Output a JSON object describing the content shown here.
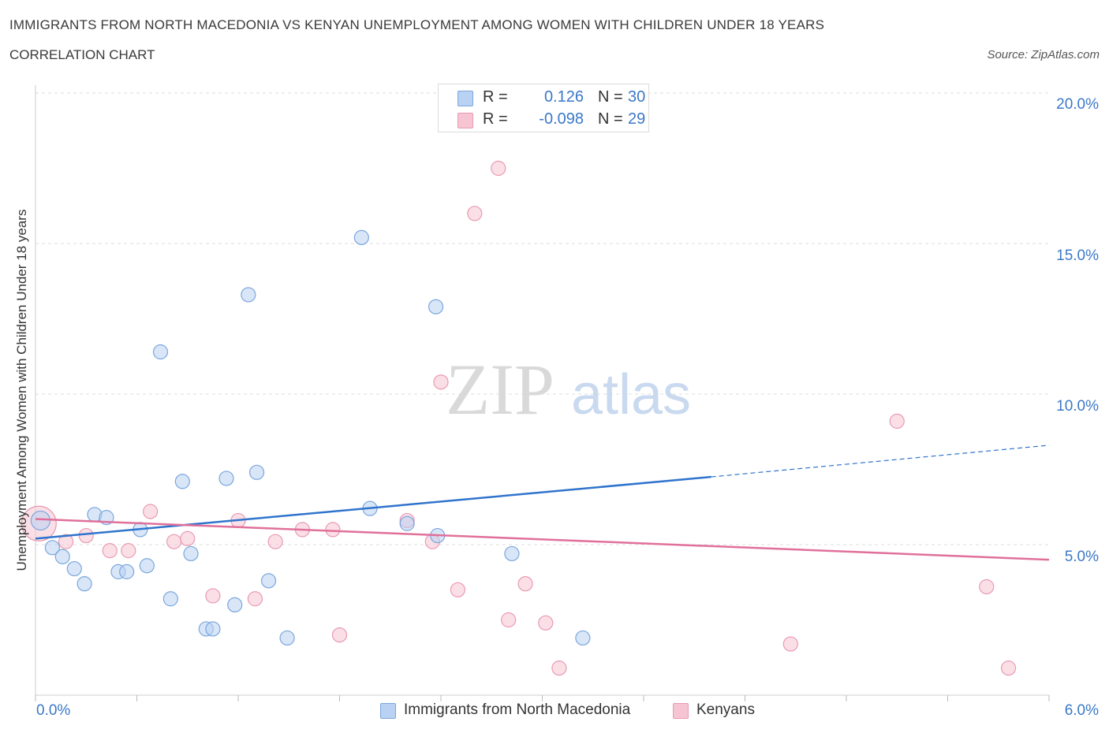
{
  "header": {
    "title": "IMMIGRANTS FROM NORTH MACEDONIA VS KENYAN UNEMPLOYMENT AMONG WOMEN WITH CHILDREN UNDER 18 YEARS",
    "subtitle": "CORRELATION CHART",
    "source": "Source: ZipAtlas.com"
  },
  "watermark": {
    "zip": "ZIP",
    "atlas": "atlas"
  },
  "colors": {
    "blue_fill": "#b9d2f3",
    "blue_stroke": "#7aa7dd",
    "blue_line": "#2f74cc",
    "pink_fill": "#f7c4d3",
    "pink_stroke": "#e99ab3",
    "pink_line": "#e0709a",
    "axis_text": "#3b78c8",
    "grid": "#dddddd"
  },
  "stats_legend": [
    {
      "swatch": "blue",
      "r_label": "R =",
      "r_value": "0.126",
      "n_label": "N =",
      "n_value": "30"
    },
    {
      "swatch": "pink",
      "r_label": "R =",
      "r_value": "-0.098",
      "n_label": "N =",
      "n_value": "29"
    }
  ],
  "chart_data": {
    "type": "scatter",
    "title": "IMMIGRANTS FROM NORTH MACEDONIA VS KENYAN UNEMPLOYMENT AMONG WOMEN WITH CHILDREN UNDER 18 YEARS",
    "xlabel": "",
    "ylabel": "Unemployment Among Women with Children Under 18 years",
    "xlim": [
      0,
      6
    ],
    "ylim": [
      0,
      20
    ],
    "x_tick_labels": [
      "0.0%",
      "6.0%"
    ],
    "y_ticks": [
      5,
      10,
      15,
      20
    ],
    "y_tick_labels": [
      "5.0%",
      "10.0%",
      "15.0%",
      "20.0%"
    ],
    "grid": "horizontal dashed",
    "legend": "bottom-center",
    "series": [
      {
        "name": "Immigrants from North Macedonia",
        "color": "blue",
        "points": [
          [
            0.03,
            5.8
          ],
          [
            0.1,
            4.9
          ],
          [
            0.16,
            4.6
          ],
          [
            0.23,
            4.2
          ],
          [
            0.29,
            3.7
          ],
          [
            0.35,
            6.0
          ],
          [
            0.42,
            5.9
          ],
          [
            0.49,
            4.1
          ],
          [
            0.54,
            4.1
          ],
          [
            0.62,
            5.5
          ],
          [
            0.66,
            4.3
          ],
          [
            0.74,
            11.4
          ],
          [
            0.8,
            3.2
          ],
          [
            0.87,
            7.1
          ],
          [
            0.92,
            4.7
          ],
          [
            1.01,
            2.2
          ],
          [
            1.05,
            2.2
          ],
          [
            1.13,
            7.2
          ],
          [
            1.18,
            3.0
          ],
          [
            1.26,
            13.3
          ],
          [
            1.31,
            7.4
          ],
          [
            1.38,
            3.8
          ],
          [
            1.49,
            1.9
          ],
          [
            1.93,
            15.2
          ],
          [
            1.98,
            6.2
          ],
          [
            2.2,
            5.7
          ],
          [
            2.37,
            12.9
          ],
          [
            2.38,
            5.3
          ],
          [
            2.82,
            4.7
          ],
          [
            3.24,
            1.9
          ]
        ],
        "trend": {
          "x": [
            0,
            4
          ],
          "y": [
            5.2,
            7.25
          ]
        },
        "trend_dashed": {
          "x": [
            4,
            6
          ],
          "y": [
            7.25,
            8.3
          ]
        }
      },
      {
        "name": "Kenyans",
        "color": "pink",
        "points": [
          [
            0.02,
            5.7
          ],
          [
            0.18,
            5.1
          ],
          [
            0.3,
            5.3
          ],
          [
            0.44,
            4.8
          ],
          [
            0.55,
            4.8
          ],
          [
            0.68,
            6.1
          ],
          [
            0.82,
            5.1
          ],
          [
            0.9,
            5.2
          ],
          [
            1.05,
            3.3
          ],
          [
            1.2,
            5.8
          ],
          [
            1.3,
            3.2
          ],
          [
            1.42,
            5.1
          ],
          [
            1.58,
            5.5
          ],
          [
            1.76,
            5.5
          ],
          [
            1.8,
            2.0
          ],
          [
            2.2,
            5.8
          ],
          [
            2.35,
            5.1
          ],
          [
            2.4,
            10.4
          ],
          [
            2.5,
            3.5
          ],
          [
            2.6,
            16.0
          ],
          [
            2.74,
            17.5
          ],
          [
            2.8,
            2.5
          ],
          [
            2.9,
            3.7
          ],
          [
            3.02,
            2.4
          ],
          [
            3.1,
            0.9
          ],
          [
            4.47,
            1.7
          ],
          [
            5.1,
            9.1
          ],
          [
            5.63,
            3.6
          ],
          [
            5.76,
            0.9
          ]
        ],
        "trend": {
          "x": [
            0,
            6
          ],
          "y": [
            5.85,
            4.5
          ]
        }
      }
    ]
  }
}
